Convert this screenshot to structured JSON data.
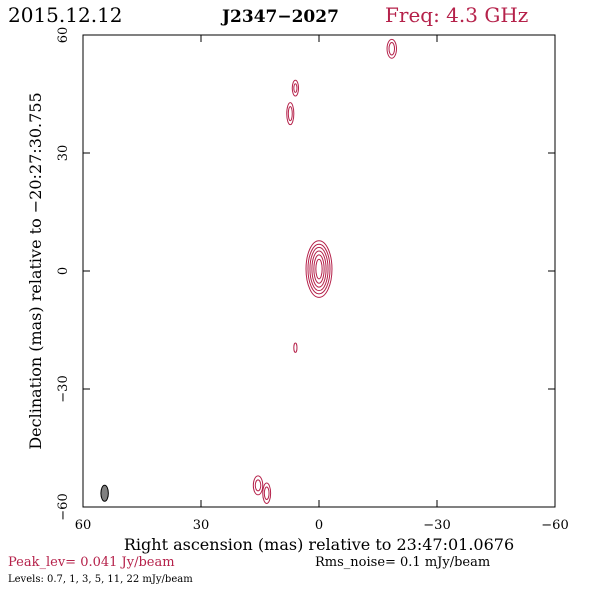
{
  "header": {
    "date": "2015.12.12",
    "source": "J2347−2027",
    "freq": "Freq: 4.3 GHz"
  },
  "footer": {
    "peak": "Peak_lev=  0.041 Jy/beam",
    "rms": "Rms_noise=   0.1 mJy/beam",
    "levels": "Levels: 0.7,    1,    3,    5,   11,   22  mJy/beam"
  },
  "colors": {
    "contour": "#b5214a",
    "accent": "#b5214a",
    "beam_fill": "#808080",
    "axes": "#000000"
  },
  "chart_data": {
    "type": "contour",
    "xlabel": "Right ascension (mas) relative to 23:47:01.0676",
    "ylabel": "Declination (mas) relative to −20:27:30.755",
    "xlim": [
      60,
      -60
    ],
    "ylim": [
      -60,
      60
    ],
    "x_ticks": [
      60,
      30,
      0,
      -30,
      -60
    ],
    "y_ticks": [
      -60,
      -30,
      0,
      30,
      60
    ],
    "x_tick_labels": [
      "60",
      "30",
      "0",
      "−30",
      "−60"
    ],
    "y_tick_labels": [
      "−60",
      "−30",
      "0",
      "30",
      "60"
    ],
    "contour_levels_mJy": [
      0.7,
      1,
      3,
      5,
      11,
      22
    ],
    "peak_Jy_per_beam": 0.041,
    "rms_noise_mJy_per_beam": 0.1,
    "components": [
      {
        "name": "core",
        "x": 0.0,
        "y": 0.5,
        "rings": [
          [
            3.3,
            7.2
          ],
          [
            2.8,
            6.3
          ],
          [
            2.3,
            5.5
          ],
          [
            1.8,
            4.6
          ],
          [
            1.3,
            3.6
          ],
          [
            0.8,
            2.5
          ]
        ]
      },
      {
        "name": "blob-top-right",
        "x": -18.5,
        "y": 56.5,
        "rings": [
          [
            1.2,
            2.4
          ],
          [
            0.7,
            1.6
          ]
        ]
      },
      {
        "name": "blob-upper-1",
        "x": 6.0,
        "y": 46.5,
        "rings": [
          [
            0.8,
            2.0
          ],
          [
            0.4,
            1.1
          ]
        ]
      },
      {
        "name": "blob-upper-2",
        "x": 7.3,
        "y": 40.0,
        "rings": [
          [
            0.9,
            2.8
          ],
          [
            0.5,
            1.8
          ]
        ]
      },
      {
        "name": "blob-mid",
        "x": 6.0,
        "y": -19.5,
        "rings": [
          [
            0.4,
            1.2
          ]
        ]
      },
      {
        "name": "blob-bottom-1",
        "x": 15.5,
        "y": -54.5,
        "rings": [
          [
            1.2,
            2.4
          ],
          [
            0.7,
            1.4
          ]
        ]
      },
      {
        "name": "blob-bottom-2",
        "x": 13.3,
        "y": -56.5,
        "rings": [
          [
            1.0,
            2.6
          ],
          [
            0.6,
            1.6
          ]
        ]
      }
    ],
    "beam": {
      "x": 54.5,
      "y": -56.5,
      "major": 2.0,
      "minor": 0.9
    }
  }
}
